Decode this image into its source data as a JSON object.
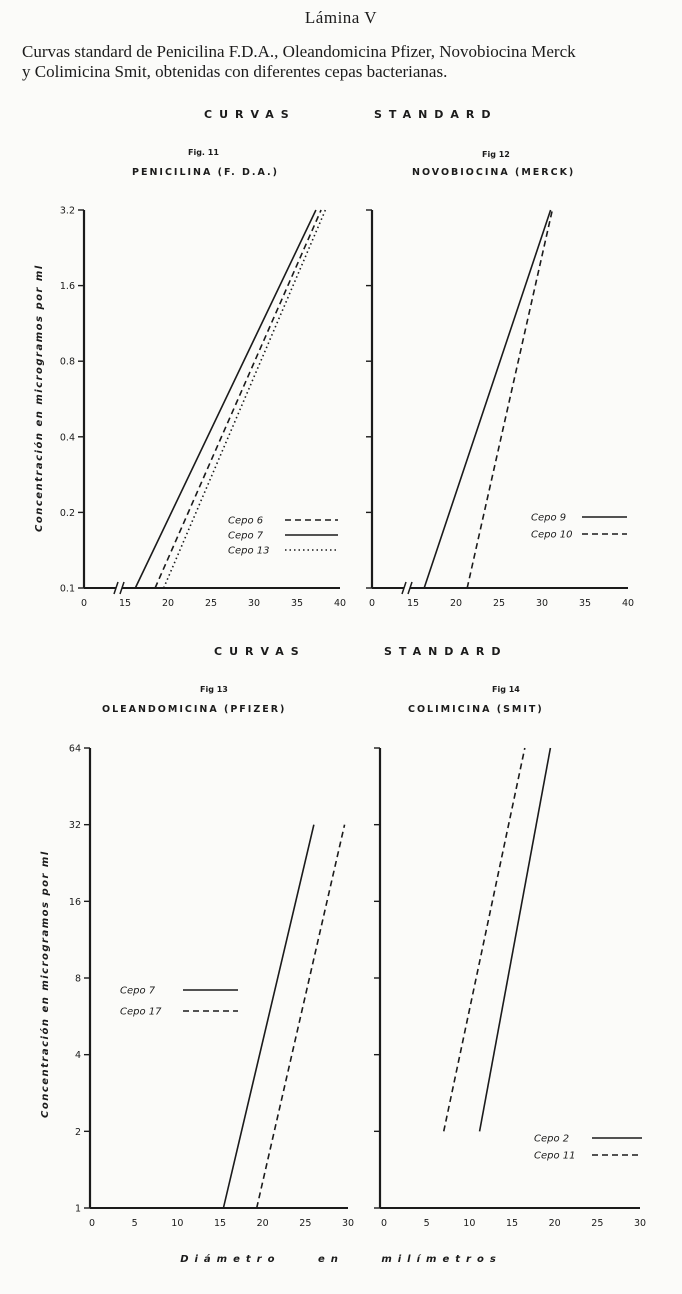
{
  "header": {
    "title": "Lámina V",
    "caption_line1": "Curvas standard de Penicilina F.D.A., Oleandomicina Pfizer, Novobiocina Merck",
    "caption_line2": "y Colimicina Smit, obtenidas con diferentes cepas bacterianas."
  },
  "section_top": {
    "left": "CURVAS",
    "right": "STANDARD"
  },
  "section_bottom": {
    "left": "CURVAS",
    "right": "STANDARD"
  },
  "y_axis_label": "Concentración en microgramos por ml",
  "x_axis_label": "Diámetro en milímetros",
  "chart_data": [
    {
      "type": "line",
      "fig": "Fig. 11",
      "title": "PENICILINA (F. D.A.)",
      "xlabel": "",
      "ylabel": "Concentración en microgramos por ml",
      "xlim": [
        0,
        40
      ],
      "x_ticks": [
        "0",
        "15",
        "20",
        "25",
        "30",
        "35",
        "40"
      ],
      "y_scale": "log",
      "ylim": [
        0.1,
        3.2
      ],
      "y_ticks": [
        "0.1",
        "0.2",
        "0.4",
        "0.8",
        "1.6",
        "3.2"
      ],
      "y_tick_values": [
        0.1,
        0.2,
        0.4,
        0.8,
        1.6,
        3.2
      ],
      "axis_break": true,
      "legend_position": "bottom-right",
      "series": [
        {
          "name": "Cepo 6",
          "style": "dashed",
          "x": [
            18.5,
            37.8
          ],
          "y": [
            0.1,
            3.2
          ]
        },
        {
          "name": "Cepo 7",
          "style": "solid",
          "x": [
            16.2,
            37.2
          ],
          "y": [
            0.1,
            3.2
          ]
        },
        {
          "name": "Cepo 13",
          "style": "dotted",
          "x": [
            19.5,
            38.3
          ],
          "y": [
            0.1,
            3.2
          ]
        }
      ]
    },
    {
      "type": "line",
      "fig": "Fig 12",
      "title": "NOVOBIOCINA (MERCK)",
      "xlabel": "",
      "ylabel": "",
      "xlim": [
        0,
        40
      ],
      "x_ticks": [
        "0",
        "15",
        "20",
        "25",
        "30",
        "35",
        "40"
      ],
      "y_scale": "log",
      "ylim": [
        0.1,
        3.2
      ],
      "y_ticks": [],
      "y_tick_values": [
        0.1,
        0.2,
        0.4,
        0.8,
        1.6,
        3.2
      ],
      "axis_break": true,
      "legend_position": "bottom-right",
      "series": [
        {
          "name": "Cepo 9",
          "style": "solid",
          "x": [
            16.3,
            31.0
          ],
          "y": [
            0.1,
            3.2
          ]
        },
        {
          "name": "Cepo 10",
          "style": "dashed",
          "x": [
            21.3,
            31.2
          ],
          "y": [
            0.1,
            3.2
          ]
        }
      ]
    },
    {
      "type": "line",
      "fig": "Fig 13",
      "title": "OLEANDOMICINA (PFIZER)",
      "xlabel": "",
      "ylabel": "Concentración en microgramos por ml",
      "xlim": [
        0,
        30
      ],
      "x_ticks": [
        "0",
        "5",
        "10",
        "15",
        "20",
        "25",
        "30"
      ],
      "y_scale": "log",
      "ylim": [
        1,
        64
      ],
      "y_ticks": [
        "1",
        "2",
        "4",
        "8",
        "16",
        "32",
        "64"
      ],
      "y_tick_values": [
        1,
        2,
        4,
        8,
        16,
        32,
        64
      ],
      "axis_break": false,
      "legend_position": "center-left",
      "series": [
        {
          "name": "Cepo 7",
          "style": "solid",
          "x": [
            15.4,
            26.0
          ],
          "y": [
            1,
            32
          ]
        },
        {
          "name": "Cepo 17",
          "style": "dashed",
          "x": [
            19.3,
            29.6
          ],
          "y": [
            1,
            32
          ]
        }
      ]
    },
    {
      "type": "line",
      "fig": "Fig 14",
      "title": "COLIMICINA (SMIT)",
      "xlabel": "",
      "ylabel": "",
      "xlim": [
        0,
        30
      ],
      "x_ticks": [
        "0",
        "5",
        "10",
        "15",
        "20",
        "25",
        "30"
      ],
      "y_scale": "log",
      "ylim": [
        1,
        64
      ],
      "y_ticks": [],
      "y_tick_values": [
        1,
        2,
        4,
        8,
        16,
        32,
        64
      ],
      "axis_break": false,
      "legend_position": "bottom-right",
      "series": [
        {
          "name": "Cepo 2",
          "style": "solid",
          "x": [
            11.2,
            19.5
          ],
          "y": [
            2,
            64
          ]
        },
        {
          "name": "Cepo 11",
          "style": "dashed",
          "x": [
            7.0,
            16.5
          ],
          "y": [
            2,
            64
          ]
        }
      ]
    }
  ]
}
